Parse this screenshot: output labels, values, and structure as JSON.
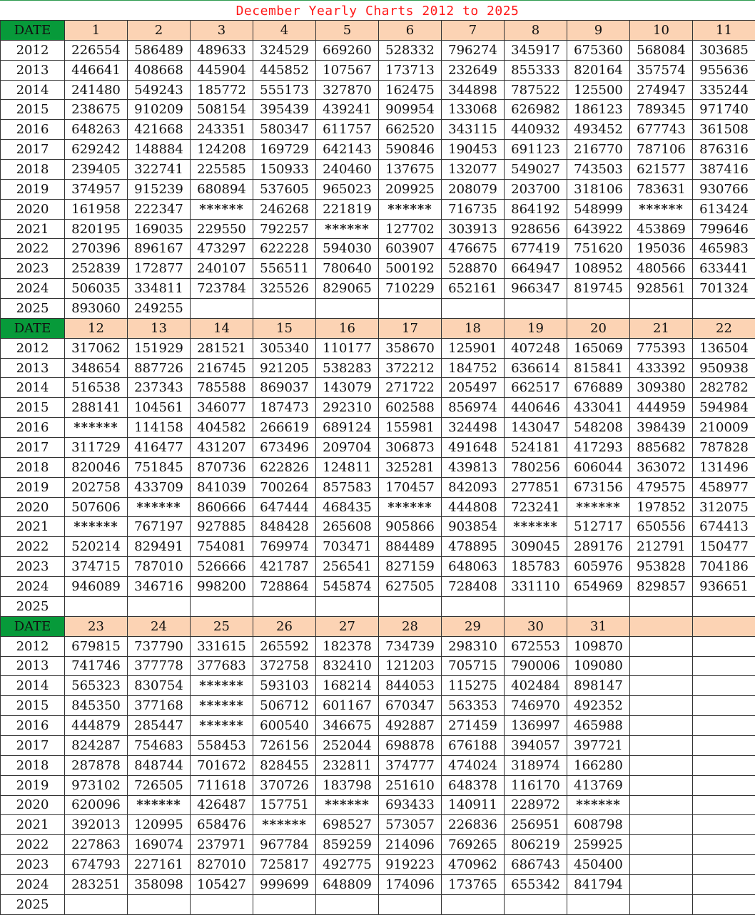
{
  "title": "December Yearly Charts 2012 to 2025",
  "date_label": "DATE",
  "blocks": [
    {
      "days": [
        "1",
        "2",
        "3",
        "4",
        "5",
        "6",
        "7",
        "8",
        "9",
        "10",
        "11"
      ],
      "rows": [
        {
          "year": "2012",
          "cells": [
            "226554",
            "586489",
            "489633",
            "324529",
            "669260",
            "528332",
            "796274",
            "345917",
            "675360",
            "568084",
            "303685"
          ]
        },
        {
          "year": "2013",
          "cells": [
            "446641",
            "408668",
            "445904",
            "445852",
            "107567",
            "173713",
            "232649",
            "855333",
            "820164",
            "357574",
            "955636"
          ]
        },
        {
          "year": "2014",
          "cells": [
            "241480",
            "549243",
            "185772",
            "555173",
            "327870",
            "162475",
            "344898",
            "787522",
            "125500",
            "274947",
            "335244"
          ]
        },
        {
          "year": "2015",
          "cells": [
            "238675",
            "910209",
            "508154",
            "395439",
            "439241",
            "909954",
            "133068",
            "626982",
            "186123",
            "789345",
            "971740"
          ]
        },
        {
          "year": "2016",
          "cells": [
            "648263",
            "421668",
            "243351",
            "580347",
            "611757",
            "662520",
            "343115",
            "440932",
            "493452",
            "677743",
            "361508"
          ]
        },
        {
          "year": "2017",
          "cells": [
            "629242",
            "148884",
            "124208",
            "169729",
            "642143",
            "590846",
            "190453",
            "691123",
            "216770",
            "787106",
            "876316"
          ]
        },
        {
          "year": "2018",
          "cells": [
            "239405",
            "322741",
            "225585",
            "150933",
            "240460",
            "137675",
            "132077",
            "549027",
            "743503",
            "621577",
            "387416"
          ]
        },
        {
          "year": "2019",
          "cells": [
            "374957",
            "915239",
            "680894",
            "537605",
            "965023",
            "209925",
            "208079",
            "203700",
            "318106",
            "783631",
            "930766"
          ]
        },
        {
          "year": "2020",
          "cells": [
            "161958",
            "222347",
            "******",
            "246268",
            "221819",
            "******",
            "716735",
            "864192",
            "548999",
            "******",
            "613424"
          ]
        },
        {
          "year": "2021",
          "cells": [
            "820195",
            "169035",
            "229550",
            "792257",
            "******",
            "127702",
            "303913",
            "928656",
            "643922",
            "453869",
            "799646"
          ]
        },
        {
          "year": "2022",
          "cells": [
            "270396",
            "896167",
            "473297",
            "622228",
            "594030",
            "603907",
            "476675",
            "677419",
            "751620",
            "195036",
            "465983"
          ]
        },
        {
          "year": "2023",
          "cells": [
            "252839",
            "172877",
            "240107",
            "556511",
            "780640",
            "500192",
            "528870",
            "664947",
            "108952",
            "480566",
            "633441"
          ]
        },
        {
          "year": "2024",
          "cells": [
            "506035",
            "334811",
            "723784",
            "325526",
            "829065",
            "710229",
            "652161",
            "966347",
            "819745",
            "928561",
            "701324"
          ]
        },
        {
          "year": "2025",
          "cells": [
            "893060",
            "249255",
            "",
            "",
            "",
            "",
            "",
            "",
            "",
            "",
            ""
          ]
        }
      ]
    },
    {
      "days": [
        "12",
        "13",
        "14",
        "15",
        "16",
        "17",
        "18",
        "19",
        "20",
        "21",
        "22"
      ],
      "rows": [
        {
          "year": "2012",
          "cells": [
            "317062",
            "151929",
            "281521",
            "305340",
            "110177",
            "358670",
            "125901",
            "407248",
            "165069",
            "775393",
            "136504"
          ]
        },
        {
          "year": "2013",
          "cells": [
            "348654",
            "887726",
            "216745",
            "921205",
            "538283",
            "372212",
            "184752",
            "636614",
            "815841",
            "433392",
            "950938"
          ]
        },
        {
          "year": "2014",
          "cells": [
            "516538",
            "237343",
            "785588",
            "869037",
            "143079",
            "271722",
            "205497",
            "662517",
            "676889",
            "309380",
            "282782"
          ]
        },
        {
          "year": "2015",
          "cells": [
            "288141",
            "104561",
            "346077",
            "187473",
            "292310",
            "602588",
            "856974",
            "440646",
            "433041",
            "444959",
            "594984"
          ]
        },
        {
          "year": "2016",
          "cells": [
            "******",
            "114158",
            "404582",
            "266619",
            "689124",
            "155981",
            "324498",
            "143047",
            "548208",
            "398439",
            "210009"
          ]
        },
        {
          "year": "2017",
          "cells": [
            "311729",
            "416477",
            "431207",
            "673496",
            "209704",
            "306873",
            "491648",
            "524181",
            "417293",
            "885682",
            "787828"
          ]
        },
        {
          "year": "2018",
          "cells": [
            "820046",
            "751845",
            "870736",
            "622826",
            "124811",
            "325281",
            "439813",
            "780256",
            "606044",
            "363072",
            "131496"
          ]
        },
        {
          "year": "2019",
          "cells": [
            "202758",
            "433709",
            "841039",
            "700264",
            "857583",
            "170457",
            "842093",
            "277851",
            "673156",
            "479575",
            "458977"
          ]
        },
        {
          "year": "2020",
          "cells": [
            "507606",
            "******",
            "860666",
            "647444",
            "468435",
            "******",
            "444808",
            "723241",
            "******",
            "197852",
            "312075"
          ]
        },
        {
          "year": "2021",
          "cells": [
            "******",
            "767197",
            "927885",
            "848428",
            "265608",
            "905866",
            "903854",
            "******",
            "512717",
            "650556",
            "674413"
          ]
        },
        {
          "year": "2022",
          "cells": [
            "520214",
            "829491",
            "754081",
            "769974",
            "703471",
            "884489",
            "478895",
            "309045",
            "289176",
            "212791",
            "150477"
          ]
        },
        {
          "year": "2023",
          "cells": [
            "374715",
            "787010",
            "526666",
            "421787",
            "256541",
            "827159",
            "648063",
            "185783",
            "605976",
            "953828",
            "704186"
          ]
        },
        {
          "year": "2024",
          "cells": [
            "946089",
            "346716",
            "998200",
            "728864",
            "545874",
            "627505",
            "728408",
            "331110",
            "654969",
            "829857",
            "936651"
          ]
        },
        {
          "year": "2025",
          "cells": [
            "",
            "",
            "",
            "",
            "",
            "",
            "",
            "",
            "",
            "",
            ""
          ]
        }
      ]
    },
    {
      "days": [
        "23",
        "24",
        "25",
        "26",
        "27",
        "28",
        "29",
        "30",
        "31",
        "",
        ""
      ],
      "rows": [
        {
          "year": "2012",
          "cells": [
            "679815",
            "737790",
            "331615",
            "265592",
            "182378",
            "734739",
            "298310",
            "672553",
            "109870"
          ]
        },
        {
          "year": "2013",
          "cells": [
            "741746",
            "377778",
            "377683",
            "372758",
            "832410",
            "121203",
            "705715",
            "790006",
            "109080"
          ]
        },
        {
          "year": "2014",
          "cells": [
            "565323",
            "830754",
            "******",
            "593103",
            "168214",
            "844053",
            "115275",
            "402484",
            "898147"
          ]
        },
        {
          "year": "2015",
          "cells": [
            "845350",
            "377168",
            "******",
            "506712",
            "601167",
            "670347",
            "563353",
            "746970",
            "492352"
          ]
        },
        {
          "year": "2016",
          "cells": [
            "444879",
            "285447",
            "******",
            "600540",
            "346675",
            "492887",
            "271459",
            "136997",
            "465988"
          ]
        },
        {
          "year": "2017",
          "cells": [
            "824287",
            "754683",
            "558453",
            "726156",
            "252044",
            "698878",
            "676188",
            "394057",
            "397721"
          ]
        },
        {
          "year": "2018",
          "cells": [
            "287878",
            "848744",
            "701672",
            "828455",
            "232811",
            "374777",
            "474024",
            "318974",
            "166280"
          ]
        },
        {
          "year": "2019",
          "cells": [
            "973102",
            "726505",
            "711618",
            "370726",
            "183798",
            "251610",
            "648378",
            "116170",
            "413769"
          ]
        },
        {
          "year": "2020",
          "cells": [
            "620096",
            "******",
            "426487",
            "157751",
            "******",
            "693433",
            "140911",
            "228972",
            "******"
          ]
        },
        {
          "year": "2021",
          "cells": [
            "392013",
            "120995",
            "658476",
            "******",
            "698527",
            "573057",
            "226836",
            "256951",
            "608798"
          ]
        },
        {
          "year": "2022",
          "cells": [
            "227863",
            "169074",
            "237971",
            "967784",
            "859259",
            "214096",
            "769265",
            "806219",
            "259925"
          ]
        },
        {
          "year": "2023",
          "cells": [
            "674793",
            "227161",
            "827010",
            "725817",
            "492775",
            "919223",
            "470962",
            "686743",
            "450400"
          ]
        },
        {
          "year": "2024",
          "cells": [
            "283251",
            "358098",
            "105427",
            "999699",
            "648809",
            "174096",
            "173765",
            "655342",
            "841794"
          ]
        },
        {
          "year": "2025",
          "cells": [
            "",
            "",
            "",
            "",
            "",
            "",
            "",
            "",
            ""
          ]
        }
      ]
    }
  ]
}
